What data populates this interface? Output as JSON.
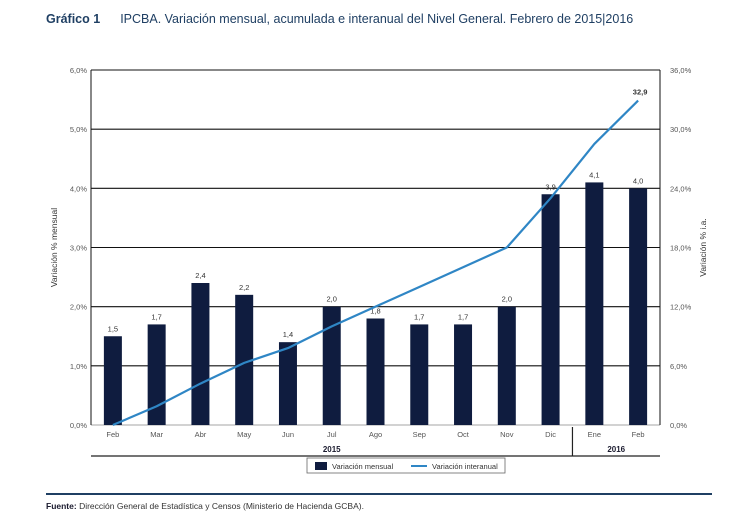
{
  "header": {
    "figure_number": "Gráfico 1",
    "title": "IPCBA. Variación mensual, acumulada e interanual del Nivel General. Febrero de 2015|2016"
  },
  "chart_data": {
    "type": "bar+line",
    "categories": [
      "Feb",
      "Mar",
      "Abr",
      "May",
      "Jun",
      "Jul",
      "Ago",
      "Sep",
      "Oct",
      "Nov",
      "Dic",
      "Ene",
      "Feb"
    ],
    "year_groups": [
      {
        "label": "2015",
        "from": 0,
        "to": 10
      },
      {
        "label": "2016",
        "from": 11,
        "to": 12
      }
    ],
    "series": [
      {
        "name": "Variación mensual",
        "type": "bar",
        "axis": "left",
        "color": "#0f1c3f",
        "values": [
          1.5,
          1.7,
          2.4,
          2.2,
          1.4,
          2.0,
          1.8,
          1.7,
          1.7,
          2.0,
          3.9,
          4.1,
          4.0
        ],
        "labels": [
          "1,5",
          "1,7",
          "2,4",
          "2,2",
          "1,4",
          "2,0",
          "1,8",
          "1,7",
          "1,7",
          "2,0",
          "3,9",
          "4,1",
          "4,0"
        ]
      },
      {
        "name": "Variación interanual",
        "type": "line",
        "axis": "right",
        "color": "#2f86c5",
        "values": [
          0.0,
          1.9,
          4.2,
          6.3,
          7.8,
          10.0,
          12.0,
          14.0,
          16.0,
          18.0,
          23.0,
          28.5,
          32.9
        ],
        "end_label": "32,9"
      }
    ],
    "y_left": {
      "label": "Variación % mensual",
      "ylim": [
        0,
        6
      ],
      "ticks": [
        "0,0%",
        "1,0%",
        "2,0%",
        "3,0%",
        "4,0%",
        "5,0%",
        "6,0%"
      ]
    },
    "y_right": {
      "label": "Variación % i.a.",
      "ylim": [
        0,
        36
      ],
      "ticks": [
        "0,0%",
        "6,0%",
        "12,0%",
        "18,0%",
        "24,0%",
        "30,0%",
        "36,0%"
      ]
    },
    "grid": true,
    "legend_position": "bottom-center"
  },
  "footer": {
    "source_label": "Fuente:",
    "source_text": "Dirección General de Estadística y Censos (Ministerio de Hacienda GCBA)."
  }
}
